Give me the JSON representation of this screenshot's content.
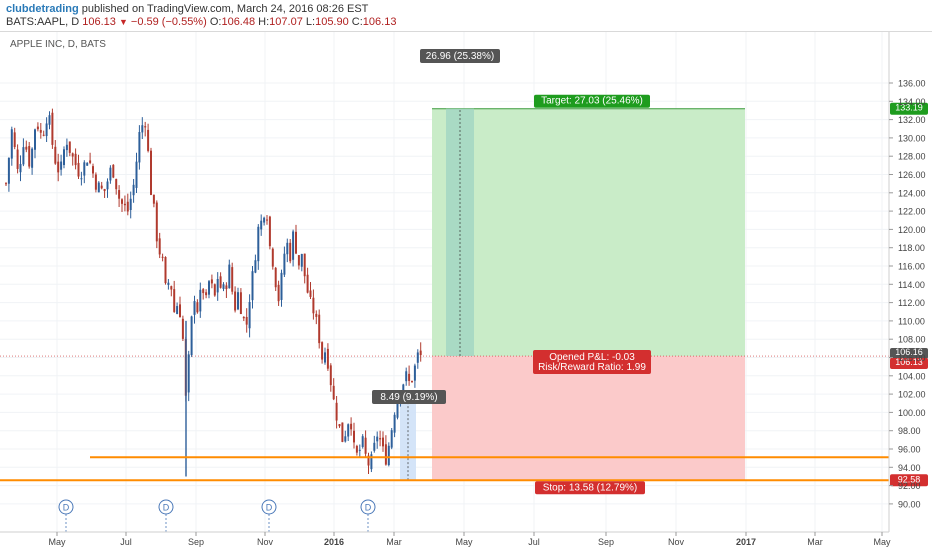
{
  "header": {
    "author": "clubdetrading",
    "published_text": "published on TradingView.com, March 24, 2016 08:26 EST",
    "symbol": "BATS:AAPL, D",
    "last": "106.13",
    "change_arrow": "▼",
    "change": "−0.59 (−0.55%)",
    "o_label": "O:",
    "o": "106.48",
    "h_label": "H:",
    "h": "107.07",
    "l_label": "L:",
    "l": "105.90",
    "c_label": "C:",
    "c": "106.13"
  },
  "chart_data": {
    "type": "candlestick",
    "title": "APPLE INC, D, BATS",
    "ylim": [
      90,
      137
    ],
    "y_ticks": [
      "90.00",
      "92.00",
      "94.00",
      "96.00",
      "98.00",
      "100.00",
      "102.00",
      "104.00",
      "106.00",
      "108.00",
      "110.00",
      "112.00",
      "114.00",
      "116.00",
      "118.00",
      "120.00",
      "122.00",
      "124.00",
      "126.00",
      "128.00",
      "130.00",
      "132.00",
      "134.00",
      "136.00"
    ],
    "x_tick_labels": [
      "May",
      "Jul",
      "Sep",
      "Nov",
      "2016",
      "Mar",
      "May",
      "Jul",
      "Sep",
      "Nov",
      "2017",
      "Mar",
      "May"
    ],
    "price_series": [
      [
        0,
        128
      ],
      [
        6,
        125
      ],
      [
        12,
        131
      ],
      [
        18,
        126
      ],
      [
        24,
        130
      ],
      [
        30,
        127
      ],
      [
        36,
        132
      ],
      [
        42,
        130
      ],
      [
        48,
        133
      ],
      [
        54,
        128
      ],
      [
        60,
        126
      ],
      [
        66,
        130
      ],
      [
        72,
        128
      ],
      [
        80,
        126
      ],
      [
        88,
        128
      ],
      [
        96,
        125
      ],
      [
        104,
        124
      ],
      [
        112,
        127
      ],
      [
        120,
        123
      ],
      [
        128,
        122
      ],
      [
        134,
        125
      ],
      [
        140,
        131
      ],
      [
        146,
        132
      ],
      [
        150,
        125
      ],
      [
        154,
        122
      ],
      [
        158,
        118
      ],
      [
        162,
        117
      ],
      [
        166,
        113
      ],
      [
        170,
        115
      ],
      [
        174,
        111
      ],
      [
        178,
        112
      ],
      [
        182,
        110
      ],
      [
        186,
        101
      ],
      [
        190,
        108
      ],
      [
        194,
        113
      ],
      [
        198,
        111
      ],
      [
        202,
        114
      ],
      [
        206,
        112
      ],
      [
        210,
        115
      ],
      [
        214,
        112
      ],
      [
        218,
        115
      ],
      [
        222,
        113
      ],
      [
        226,
        114
      ],
      [
        230,
        116
      ],
      [
        234,
        111
      ],
      [
        238,
        113
      ],
      [
        242,
        111
      ],
      [
        246,
        109
      ],
      [
        250,
        113
      ],
      [
        254,
        116
      ],
      [
        258,
        120
      ],
      [
        262,
        121
      ],
      [
        266,
        123
      ],
      [
        270,
        118
      ],
      [
        274,
        116
      ],
      [
        278,
        112
      ],
      [
        282,
        115
      ],
      [
        286,
        119
      ],
      [
        290,
        117
      ],
      [
        294,
        120
      ],
      [
        298,
        116
      ],
      [
        302,
        117
      ],
      [
        306,
        114
      ],
      [
        310,
        112
      ],
      [
        314,
        111
      ],
      [
        318,
        109
      ],
      [
        322,
        106
      ],
      [
        326,
        107
      ],
      [
        330,
        104
      ],
      [
        334,
        101
      ],
      [
        338,
        99
      ],
      [
        342,
        97
      ],
      [
        346,
        98
      ],
      [
        350,
        100
      ],
      [
        354,
        96
      ],
      [
        358,
        95
      ],
      [
        362,
        97
      ],
      [
        366,
        95
      ],
      [
        370,
        94
      ],
      [
        374,
        96
      ],
      [
        378,
        98
      ],
      [
        382,
        96
      ],
      [
        386,
        95
      ],
      [
        390,
        97
      ],
      [
        394,
        100
      ],
      [
        398,
        102
      ],
      [
        402,
        103
      ],
      [
        406,
        104
      ],
      [
        410,
        103
      ],
      [
        414,
        104.5
      ],
      [
        418,
        106.3
      ],
      [
        421,
        106.13
      ]
    ],
    "current_price": "106.16",
    "last_price": "106.13",
    "target_price": "133.19",
    "stop_price": "92.58",
    "support_level": 95.1,
    "long_position": {
      "entry": 106.16,
      "target": 133.19,
      "stop": 92.58,
      "target_label": "Target: 27.03 (25.46%)",
      "stop_label": "Stop: 13.58 (12.79%)",
      "pl_label": "Opened P&L: -0.03",
      "rr_label": "Risk/Reward Ratio: 1.99"
    },
    "measure_up": "26.96 (25.38%)",
    "measure_small": "8.49 (9.19%)",
    "dividend_marker": "D",
    "dividend_x": [
      66,
      166,
      269,
      368
    ]
  },
  "colors": {
    "up": "#2d5f9a",
    "down": "#b03a2e",
    "target_fill": "#c9ecc8",
    "target_line": "#3a9a3a",
    "stop_fill": "#fbcaca",
    "stop_line": "#c62828",
    "support": "#ff8c00",
    "measure_box": "#555555"
  }
}
